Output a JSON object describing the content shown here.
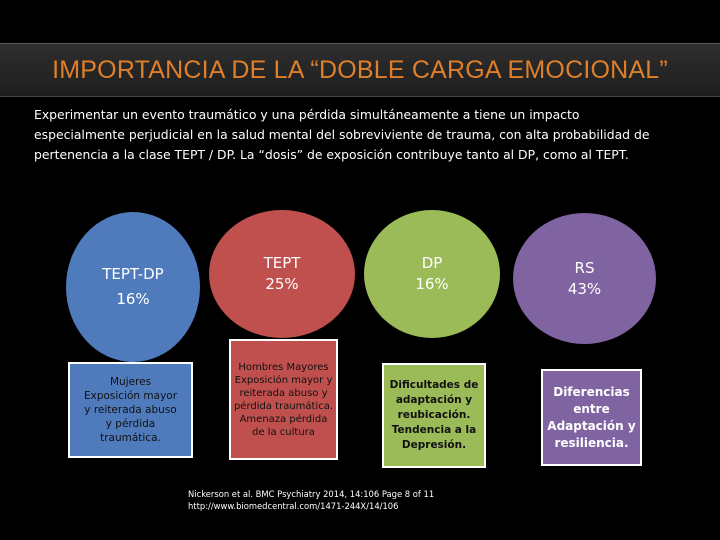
{
  "title": "IMPORTANCIA DE LA “DOBLE CARGA EMOCIONAL”",
  "intro_lines": [
    "Experimentar un evento traumático y una pérdida  simultáneamente a tiene un impacto",
    "especialmente perjudicial en la salud mental del sobreviviente de trauma, con alta probabilidad de",
    "pertenencia a la clase TEPT / DP. La “dosis” de exposición contribuye tanto  al  DP, como al TEPT."
  ],
  "groups": [
    {
      "label": "TEPT-DP",
      "value": "16%",
      "circle_color": "#4f7bbd",
      "description_lines": [
        "Mujeres",
        "Exposición mayor",
        "y reiterada abuso",
        "y pérdida",
        "traumática."
      ]
    },
    {
      "label": "TEPT",
      "value": "25%",
      "circle_color": "#c0504d",
      "description_lines": [
        "Hombres Mayores",
        "Exposición mayor y",
        "reiterada abuso y",
        "pérdida traumática.",
        "Amenaza pérdida",
        "de la cultura"
      ]
    },
    {
      "label": "DP",
      "value": "16%",
      "circle_color": "#9bbb59",
      "description_lines": [
        "Dificultades de",
        "adaptación y",
        "reubicación.",
        "Tendencia a la",
        "Depresión."
      ]
    },
    {
      "label": "RS",
      "value": "43%",
      "circle_color": "#8064a2",
      "description_lines": [
        "Diferencias",
        "entre",
        "Adaptación y",
        "resiliencia."
      ]
    }
  ],
  "citation_lines": [
    "Nickerson et al. BMC Psychiatry 2014, 14:106 Page 8 of 11",
    "http://www.biomedcentral.com/1471-244X/14/106"
  ],
  "colors": {
    "background": "#000000",
    "title": "#e07f2a"
  }
}
